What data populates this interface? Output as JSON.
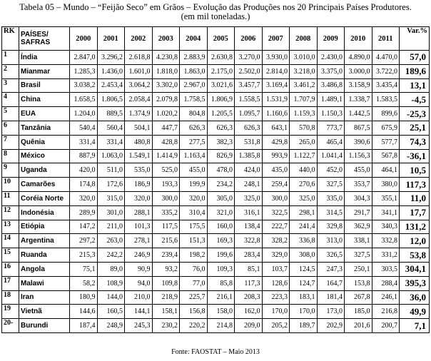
{
  "title": "Tabela 05  – Mundo – “Feijão Seco” em Grãos – Evolução das Produções nos 20 Principais Países Produtores.",
  "subtitle": "(em mil  toneladas.)",
  "headers": {
    "rk": "RK",
    "country_line1": "PAÍSES/",
    "country_line2": "SAFRAS",
    "years": [
      "2000",
      "2001",
      "2002",
      "2003",
      "2004",
      "2005",
      "2006",
      "2007",
      "2008",
      "2009",
      "2010",
      "2011"
    ],
    "var": "Var.%"
  },
  "rows": [
    {
      "rk": "1",
      "country": "Índia",
      "values": [
        "2.847,0",
        "3.296,2",
        "2.618,8",
        "4.230,8",
        "2.883,9",
        "2.630,8",
        "3.270,0",
        "3.930,0",
        "3.010,0",
        "2.430,0",
        "4.890,0",
        "4.470,0"
      ],
      "var": "57,0"
    },
    {
      "rk": "2",
      "country": "Mianmar",
      "values": [
        "1.285,3",
        "1.436,0",
        "1.601,0",
        "1.818,0",
        "1.863,0",
        "2.175,0",
        "2.502,0",
        "2.814,0",
        "3.218,0",
        "3.375,0",
        "3.000,0",
        "3.722,0"
      ],
      "var": "189,6"
    },
    {
      "rk": "3",
      "country": "Brasil",
      "values": [
        "3.038,2",
        "2.453,4",
        "3.064,2",
        "3.302,0",
        "2.967,0",
        "3.021,6",
        "3.457,7",
        "3.169,4",
        "3.461,2",
        "3.486,8",
        "3.158,9",
        "3.435,4"
      ],
      "var": "13,1"
    },
    {
      "rk": "4",
      "country": "China",
      "values": [
        "1.658,5",
        "1.806,5",
        "2.058,4",
        "2.079,8",
        "1.758,5",
        "1.806,9",
        "1.558,5",
        "1.531,9",
        "1.707,9",
        "1.489,1",
        "1.338,7",
        "1.583,5"
      ],
      "var": "-4,5"
    },
    {
      "rk": "5",
      "country": "EUA",
      "values": [
        "1.204,0",
        "889,5",
        "1.374,9",
        "1.020,2",
        "804,8",
        "1.205,5",
        "1.095,7",
        "1.160,6",
        "1.159,3",
        "1.150,3",
        "1.442,5",
        "899,6"
      ],
      "var": "-25,3"
    },
    {
      "rk": "6",
      "country": "Tanzânia",
      "values": [
        "540,4",
        "560,4",
        "504,1",
        "447,7",
        "626,3",
        "626,3",
        "626,3",
        "643,1",
        "570,8",
        "773,7",
        "867,5",
        "675,9"
      ],
      "var": "25,1"
    },
    {
      "rk": "7",
      "country": "Quênia",
      "values": [
        "331,4",
        "331,4",
        "480,8",
        "428,8",
        "277,5",
        "382,3",
        "531,8",
        "429,8",
        "265,0",
        "465,4",
        "390,6",
        "577,7"
      ],
      "var": "74,3"
    },
    {
      "rk": "8",
      "country": "México",
      "values": [
        "887,9",
        "1.063,0",
        "1.549,1",
        "1.414,9",
        "1.163,4",
        "826,9",
        "1.385,8",
        "993,9",
        "1.122,7",
        "1.041,4",
        "1.156,3",
        "567,8"
      ],
      "var": "-36,1"
    },
    {
      "rk": "9",
      "country": "Uganda",
      "values": [
        "420,0",
        "511,0",
        "535,0",
        "525,0",
        "455,0",
        "478,0",
        "424,0",
        "435,0",
        "440,0",
        "452,0",
        "455,0",
        "464,1"
      ],
      "var": "10,5"
    },
    {
      "rk": "10",
      "country": "Camarões",
      "values": [
        "174,8",
        "172,6",
        "186,9",
        "193,3",
        "199,9",
        "234,2",
        "248,1",
        "259,4",
        "270,6",
        "327,5",
        "353,7",
        "380,0"
      ],
      "var": "117,3"
    },
    {
      "rk": "11",
      "country": "Coréia  Norte",
      "values": [
        "320,0",
        "315,0",
        "320,0",
        "300,0",
        "320,0",
        "305,0",
        "325,0",
        "300,0",
        "325,0",
        "335,0",
        "304,3",
        "355,1"
      ],
      "var": "11,0"
    },
    {
      "rk": "12",
      "country": "Indonésia",
      "values": [
        "289,9",
        "301,0",
        "288,1",
        "335,2",
        "310,4",
        "321,0",
        "316,1",
        "322,5",
        "298,1",
        "314,5",
        "291,7",
        "341,1"
      ],
      "var": "17,7"
    },
    {
      "rk": "13",
      "country": "Etiópia",
      "values": [
        "147,2",
        "211,0",
        "101,3",
        "117,5",
        "175,5",
        "160,0",
        "138,4",
        "222,7",
        "241,4",
        "329,8",
        "362,9",
        "340,3"
      ],
      "var": "131,2"
    },
    {
      "rk": "14",
      "country": "Argentina",
      "values": [
        "297,2",
        "263,0",
        "278,1",
        "215,6",
        "151,3",
        "169,3",
        "322,8",
        "328,2",
        "336,8",
        "313,0",
        "338,1",
        "332,8"
      ],
      "var": "12,0"
    },
    {
      "rk": "15",
      "country": "Ruanda",
      "values": [
        "215,3",
        "242,2",
        "246,9",
        "239,4",
        "198,2",
        "199,6",
        "283,4",
        "329,0",
        "308,0",
        "326,5",
        "327,5",
        "331,2"
      ],
      "var": "53,8"
    },
    {
      "rk": "16",
      "country": "Angola",
      "values": [
        "75,1",
        "89,0",
        "90,9",
        "93,2",
        "76,0",
        "109,3",
        "85,1",
        "103,7",
        "124,5",
        "247,3",
        "250,1",
        "303,5"
      ],
      "var": "304,1"
    },
    {
      "rk": "17",
      "country": "Malawi",
      "values": [
        "58,2",
        "108,9",
        "94,0",
        "109,8",
        "77,0",
        "85,8",
        "117,3",
        "128,6",
        "124,7",
        "164,7",
        "153,8",
        "288,4"
      ],
      "var": "395,3"
    },
    {
      "rk": "18",
      "country": "Iran",
      "values": [
        "180,9",
        "144,0",
        "210,0",
        "218,9",
        "225,7",
        "216,1",
        "208,3",
        "223,3",
        "183,1",
        "181,4",
        "267,8",
        "246,1"
      ],
      "var": "36,0"
    },
    {
      "rk": "19",
      "country": "Vietnã",
      "values": [
        "144,6",
        "160,5",
        "144,1",
        "158,1",
        "156,8",
        "158,0",
        "162,0",
        "170,0",
        "170,0",
        "173,0",
        "185,0",
        "216,8"
      ],
      "var": "49,9"
    },
    {
      "rk": "20-",
      "country": "Burundi",
      "values": [
        "187,4",
        "248,9",
        "245,3",
        "230,2",
        "220,2",
        "214,8",
        "209,0",
        "205,2",
        "189,7",
        "202,9",
        "201,6",
        "200,7"
      ],
      "var": "7,1"
    }
  ],
  "footer": "Fonte: FAOSTAT – Maio 2013"
}
